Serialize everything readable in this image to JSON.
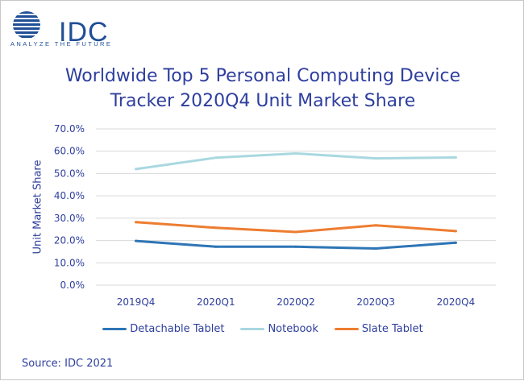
{
  "logo": {
    "name": "IDC",
    "tagline": "ANALYZE THE FUTURE"
  },
  "colors": {
    "text": "#2e3e9e",
    "logo": "#1f4e96",
    "grid": "#d9d9d9"
  },
  "source": "Source: IDC 2021",
  "chart_data": {
    "type": "line",
    "title_lines": [
      "Worldwide Top 5 Personal Computing Device",
      "Tracker 2020Q4 Unit Market Share"
    ],
    "xlabel": "",
    "ylabel": "Unit Market Share",
    "categories": [
      "2019Q4",
      "2020Q1",
      "2020Q2",
      "2020Q3",
      "2020Q4"
    ],
    "y_ticks": [
      "0.0%",
      "10.0%",
      "20.0%",
      "30.0%",
      "40.0%",
      "50.0%",
      "60.0%",
      "70.0%"
    ],
    "ylim": [
      0,
      70
    ],
    "grid": true,
    "legend_position": "bottom",
    "series": [
      {
        "name": "Detachable Tablet",
        "color": "#2e75b6",
        "values": [
          19.8,
          17.2,
          17.2,
          16.4,
          19.0
        ]
      },
      {
        "name": "Notebook",
        "color": "#a9d8e0",
        "values": [
          52.0,
          57.1,
          59.0,
          56.8,
          57.2
        ]
      },
      {
        "name": "Slate Tablet",
        "color": "#ed7d31",
        "values": [
          28.2,
          25.7,
          23.8,
          26.8,
          24.2
        ]
      }
    ]
  }
}
